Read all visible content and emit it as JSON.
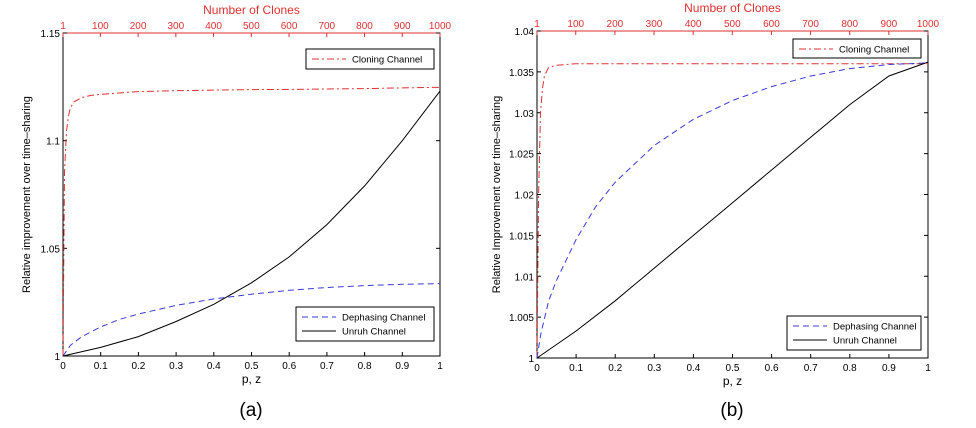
{
  "chart_data": [
    {
      "type": "line",
      "panel_label": "(a)",
      "xlabel": "p, z",
      "ylabel": "Relative improvement over time–sharing",
      "top_xlabel": "Number of Clones",
      "xlim": [
        0,
        1
      ],
      "ylim": [
        1,
        1.15
      ],
      "top_xlim": [
        1,
        1000
      ],
      "x_ticks": [
        "0",
        "0.1",
        "0.2",
        "0.3",
        "0.4",
        "0.5",
        "0.6",
        "0.7",
        "0.8",
        "0.9",
        "1"
      ],
      "y_ticks": [
        {
          "v": 1,
          "t": "1"
        },
        {
          "v": 1.05,
          "t": "1.05"
        },
        {
          "v": 1.1,
          "t": "1.1"
        },
        {
          "v": 1.15,
          "t": "1.15"
        }
      ],
      "top_ticks": [
        {
          "v": 1,
          "t": "1"
        },
        {
          "v": 100,
          "t": "100"
        },
        {
          "v": 200,
          "t": "200"
        },
        {
          "v": 300,
          "t": "300"
        },
        {
          "v": 400,
          "t": "400"
        },
        {
          "v": 500,
          "t": "500"
        },
        {
          "v": 600,
          "t": "600"
        },
        {
          "v": 700,
          "t": "700"
        },
        {
          "v": 800,
          "t": "800"
        },
        {
          "v": 900,
          "t": "900"
        },
        {
          "v": 1000,
          "t": "1000"
        }
      ],
      "series": [
        {
          "name": "Cloning Channel",
          "axis": "top",
          "color": "#e03030",
          "dash": "7,3,2,3",
          "x": [
            1,
            5,
            10,
            15,
            20,
            30,
            50,
            75,
            100,
            200,
            300,
            400,
            500,
            600,
            700,
            800,
            900,
            1000
          ],
          "y": [
            1.0,
            1.085,
            1.104,
            1.111,
            1.115,
            1.118,
            1.12,
            1.121,
            1.1215,
            1.1228,
            1.1232,
            1.1235,
            1.1237,
            1.1238,
            1.124,
            1.1242,
            1.1245,
            1.1248
          ]
        },
        {
          "name": "Dephasing Channel",
          "axis": "bottom",
          "color": "#3a3ad6",
          "dash": "6,4",
          "x": [
            0,
            0.02,
            0.05,
            0.1,
            0.15,
            0.2,
            0.3,
            0.4,
            0.5,
            0.6,
            0.7,
            0.8,
            0.9,
            1.0
          ],
          "y": [
            1.0,
            1.005,
            1.009,
            1.0135,
            1.017,
            1.0195,
            1.0235,
            1.0265,
            1.0287,
            1.0305,
            1.0318,
            1.0327,
            1.0333,
            1.0336
          ]
        },
        {
          "name": "Unruh Channel",
          "axis": "bottom",
          "color": "#000000",
          "dash": "",
          "x": [
            0,
            0.1,
            0.2,
            0.3,
            0.4,
            0.5,
            0.6,
            0.7,
            0.8,
            0.9,
            1.0
          ],
          "y": [
            1.0,
            1.004,
            1.009,
            1.016,
            1.024,
            1.034,
            1.046,
            1.061,
            1.079,
            1.1,
            1.123
          ]
        }
      ],
      "legends": [
        {
          "position": "top-right",
          "items": [
            "Cloning Channel"
          ]
        },
        {
          "position": "bottom-right",
          "items": [
            "Dephasing Channel",
            "Unruh Channel"
          ]
        }
      ]
    },
    {
      "type": "line",
      "panel_label": "(b)",
      "xlabel": "p, z",
      "ylabel": "Relative Improvement over time–sharing",
      "top_xlabel": "Number of Clones",
      "xlim": [
        0,
        1
      ],
      "ylim": [
        1,
        1.04
      ],
      "top_xlim": [
        1,
        1000
      ],
      "x_ticks": [
        "0",
        "0.1",
        "0.2",
        "0.3",
        "0.4",
        "0.5",
        "0.6",
        "0.7",
        "0.8",
        "0.9",
        "1"
      ],
      "y_ticks": [
        {
          "v": 1,
          "t": "1"
        },
        {
          "v": 1.005,
          "t": "1.005"
        },
        {
          "v": 1.01,
          "t": "1.01"
        },
        {
          "v": 1.015,
          "t": "1.015"
        },
        {
          "v": 1.02,
          "t": "1.02"
        },
        {
          "v": 1.025,
          "t": "1.025"
        },
        {
          "v": 1.03,
          "t": "1.03"
        },
        {
          "v": 1.035,
          "t": "1.035"
        },
        {
          "v": 1.04,
          "t": "1.04"
        }
      ],
      "top_ticks": [
        {
          "v": 1,
          "t": "1"
        },
        {
          "v": 100,
          "t": "100"
        },
        {
          "v": 200,
          "t": "200"
        },
        {
          "v": 300,
          "t": "300"
        },
        {
          "v": 400,
          "t": "400"
        },
        {
          "v": 500,
          "t": "500"
        },
        {
          "v": 600,
          "t": "600"
        },
        {
          "v": 700,
          "t": "700"
        },
        {
          "v": 800,
          "t": "800"
        },
        {
          "v": 900,
          "t": "900"
        },
        {
          "v": 1000,
          "t": "1000"
        }
      ],
      "series": [
        {
          "name": "Cloning Channel",
          "axis": "top",
          "color": "#e03030",
          "dash": "7,3,2,3",
          "x": [
            1,
            5,
            10,
            15,
            20,
            30,
            50,
            75,
            100,
            200,
            400,
            600,
            800,
            1000
          ],
          "y": [
            1.0,
            1.02,
            1.03,
            1.033,
            1.0345,
            1.0355,
            1.0358,
            1.0359,
            1.036,
            1.036,
            1.036,
            1.036,
            1.036,
            1.036
          ]
        },
        {
          "name": "Dephasing Channel",
          "axis": "bottom",
          "color": "#3a3ad6",
          "dash": "6,4",
          "x": [
            0,
            0.01,
            0.03,
            0.05,
            0.1,
            0.15,
            0.2,
            0.3,
            0.4,
            0.5,
            0.6,
            0.7,
            0.8,
            0.9,
            1.0
          ],
          "y": [
            1.0,
            1.003,
            1.007,
            1.0095,
            1.0145,
            1.0185,
            1.0215,
            1.026,
            1.0292,
            1.0315,
            1.0332,
            1.0345,
            1.0354,
            1.0359,
            1.0361
          ]
        },
        {
          "name": "Unruh Channel",
          "axis": "bottom",
          "color": "#000000",
          "dash": "",
          "x": [
            0,
            0.1,
            0.2,
            0.3,
            0.4,
            0.5,
            0.6,
            0.7,
            0.8,
            0.9,
            1.0
          ],
          "y": [
            1.0,
            1.0033,
            1.007,
            1.011,
            1.015,
            1.019,
            1.023,
            1.027,
            1.031,
            1.0345,
            1.0362
          ]
        }
      ],
      "legends": [
        {
          "position": "top-right",
          "items": [
            "Cloning Channel"
          ]
        },
        {
          "position": "bottom-right",
          "items": [
            "Dephasing Channel",
            "Unruh Channel"
          ]
        }
      ]
    }
  ]
}
